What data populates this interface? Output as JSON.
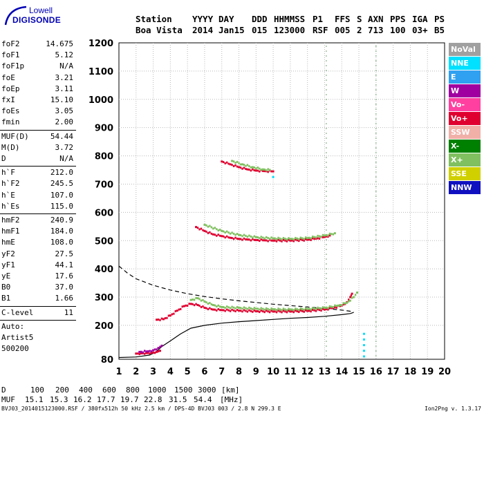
{
  "logo": {
    "line1": "Lowell",
    "line2": "DIGISONDE"
  },
  "header": {
    "labels": [
      "Station",
      "YYYY",
      "DAY",
      "DDD",
      "HHMMSS",
      "P1",
      "FFS",
      "S",
      "AXN",
      "PPS",
      "IGA",
      "PS"
    ],
    "values": [
      "Boa Vista",
      "2014",
      "Jan15",
      "015",
      "123000",
      "RSF",
      "005",
      "2",
      "713",
      "100",
      "03+",
      "B5"
    ]
  },
  "params": {
    "group1": [
      {
        "k": "foF2",
        "v": "14.675"
      },
      {
        "k": "foF1",
        "v": "5.12"
      },
      {
        "k": "foF1p",
        "v": "N/A"
      },
      {
        "k": "foE",
        "v": "3.21"
      },
      {
        "k": "foEp",
        "v": "3.11"
      },
      {
        "k": "fxI",
        "v": "15.10"
      },
      {
        "k": "foEs",
        "v": "3.05"
      },
      {
        "k": "fmin",
        "v": "2.00"
      }
    ],
    "group2": [
      {
        "k": "MUF(D)",
        "v": "54.44"
      },
      {
        "k": "M(D)",
        "v": "3.72"
      },
      {
        "k": "D",
        "v": "N/A"
      }
    ],
    "group3": [
      {
        "k": "h`F",
        "v": "212.0"
      },
      {
        "k": "h`F2",
        "v": "245.5"
      },
      {
        "k": "h`E",
        "v": "107.0"
      },
      {
        "k": "h`Es",
        "v": "115.0"
      }
    ],
    "group4": [
      {
        "k": "hmF2",
        "v": "240.9"
      },
      {
        "k": "hmF1",
        "v": "184.0"
      },
      {
        "k": "hmE",
        "v": "108.0"
      },
      {
        "k": "yF2",
        "v": "27.5"
      },
      {
        "k": "yF1",
        "v": "44.1"
      },
      {
        "k": "yE",
        "v": "17.6"
      },
      {
        "k": "B0",
        "v": "37.0"
      },
      {
        "k": "B1",
        "v": "1.66"
      }
    ],
    "group5": [
      {
        "k": "C-level",
        "v": "11"
      }
    ],
    "auto": [
      "Auto:",
      "Artist5",
      "500200"
    ]
  },
  "legend": [
    {
      "label": "NoVal",
      "color": "#a0a0a0"
    },
    {
      "label": "NNE",
      "color": "#00e0ff"
    },
    {
      "label": "E",
      "color": "#30a0f0"
    },
    {
      "label": "W",
      "color": "#a000a0"
    },
    {
      "label": "Vo-",
      "color": "#ff40a0"
    },
    {
      "label": "Vo+",
      "color": "#e00030"
    },
    {
      "label": "SSW",
      "color": "#f0b0a8"
    },
    {
      "label": "X-",
      "color": "#008000"
    },
    {
      "label": "X+",
      "color": "#80c060"
    },
    {
      "label": "SSE",
      "color": "#d0d000"
    },
    {
      "label": "NNW",
      "color": "#1010c0"
    }
  ],
  "chart_data": {
    "type": "scatter",
    "xlim": [
      1,
      20
    ],
    "ylim": [
      80,
      1200
    ],
    "x_ticks": [
      "1",
      "2",
      "3",
      "4",
      "5",
      "6",
      "7",
      "8",
      "9",
      "10",
      "11",
      "12",
      "13",
      "14",
      "15",
      "16",
      "17",
      "18",
      "19",
      "20"
    ],
    "y_ticks": [
      "80",
      "200",
      "300",
      "400",
      "500",
      "600",
      "700",
      "800",
      "900",
      "1000",
      "1100",
      "1200"
    ],
    "grid": true,
    "series": [
      {
        "name": "Vo+",
        "color": "#e00030",
        "points": [
          [
            3.2,
            220
          ],
          [
            3.6,
            222
          ],
          [
            4.0,
            235
          ],
          [
            4.4,
            252
          ],
          [
            4.8,
            268
          ],
          [
            5.2,
            276
          ],
          [
            5.6,
            272
          ],
          [
            6.0,
            262
          ],
          [
            6.5,
            256
          ],
          [
            7.0,
            254
          ],
          [
            8,
            252
          ],
          [
            9,
            250
          ],
          [
            10,
            249
          ],
          [
            11,
            249
          ],
          [
            12,
            251
          ],
          [
            13,
            256
          ],
          [
            13.5,
            262
          ],
          [
            14,
            270
          ],
          [
            14.3,
            282
          ],
          [
            14.5,
            300
          ],
          [
            14.6,
            312
          ]
        ]
      },
      {
        "name": "X+",
        "color": "#80c060",
        "points": [
          [
            5.2,
            290
          ],
          [
            5.6,
            296
          ],
          [
            6.0,
            284
          ],
          [
            6.5,
            272
          ],
          [
            7,
            265
          ],
          [
            8,
            262
          ],
          [
            9,
            259
          ],
          [
            10,
            257
          ],
          [
            11,
            256
          ],
          [
            12,
            258
          ],
          [
            13,
            262
          ],
          [
            13.8,
            270
          ],
          [
            14.3,
            280
          ],
          [
            14.7,
            300
          ],
          [
            14.9,
            316
          ]
        ]
      },
      {
        "name": "Vo+ 2hop",
        "color": "#e00030",
        "points": [
          [
            5.5,
            548
          ],
          [
            6,
            534
          ],
          [
            6.5,
            522
          ],
          [
            7,
            516
          ],
          [
            7.5,
            510
          ],
          [
            8,
            506
          ],
          [
            8.5,
            504
          ],
          [
            9,
            502
          ],
          [
            9.5,
            501
          ],
          [
            10,
            500
          ],
          [
            11,
            500
          ],
          [
            12,
            503
          ],
          [
            12.5,
            507
          ],
          [
            13,
            513
          ],
          [
            13.3,
            518
          ]
        ]
      },
      {
        "name": "X+ 2hop",
        "color": "#80c060",
        "points": [
          [
            6,
            556
          ],
          [
            7,
            534
          ],
          [
            8,
            520
          ],
          [
            9,
            512
          ],
          [
            10,
            508
          ],
          [
            11,
            506
          ],
          [
            12,
            509
          ],
          [
            13,
            518
          ],
          [
            13.6,
            526
          ]
        ]
      },
      {
        "name": "Vo+ 3hop",
        "color": "#e00030",
        "points": [
          [
            7,
            780
          ],
          [
            7.5,
            770
          ],
          [
            8,
            760
          ],
          [
            8.5,
            752
          ],
          [
            9,
            748
          ],
          [
            9.5,
            746
          ],
          [
            10,
            745
          ]
        ]
      },
      {
        "name": "X+ 3hop",
        "color": "#80c060",
        "points": [
          [
            7.6,
            782
          ],
          [
            8.2,
            770
          ],
          [
            8.8,
            760
          ],
          [
            9.4,
            752
          ],
          [
            9.8,
            750
          ]
        ]
      },
      {
        "name": "Es",
        "color": "#e00030",
        "points": [
          [
            2.0,
            100
          ],
          [
            2.3,
            101
          ],
          [
            2.6,
            102
          ],
          [
            2.9,
            103
          ],
          [
            3.2,
            106
          ],
          [
            3.4,
            110
          ]
        ]
      },
      {
        "name": "Es-W",
        "color": "#a000a0",
        "points": [
          [
            2.2,
            106
          ],
          [
            2.7,
            108
          ],
          [
            3.0,
            112
          ],
          [
            3.3,
            120
          ],
          [
            3.5,
            128
          ]
        ]
      },
      {
        "name": "NNE",
        "color": "#00e0ff",
        "points": [
          [
            15.3,
            90
          ],
          [
            15.3,
            110
          ],
          [
            15.3,
            130
          ],
          [
            15.3,
            150
          ],
          [
            15.3,
            170
          ],
          [
            10,
            725
          ]
        ]
      }
    ],
    "profile_solid": [
      [
        1,
        86
      ],
      [
        2,
        88
      ],
      [
        2.8,
        95
      ],
      [
        3.2,
        108
      ],
      [
        3.5,
        125
      ],
      [
        4,
        145
      ],
      [
        4.6,
        170
      ],
      [
        5.2,
        190
      ],
      [
        6,
        200
      ],
      [
        7,
        208
      ],
      [
        8,
        213
      ],
      [
        9,
        217
      ],
      [
        10,
        221
      ],
      [
        11,
        225
      ],
      [
        12,
        228
      ],
      [
        13,
        232
      ],
      [
        14,
        238
      ],
      [
        14.5,
        242
      ],
      [
        14.7,
        246
      ]
    ],
    "profile_dashed": [
      [
        1,
        410
      ],
      [
        1.5,
        385
      ],
      [
        2,
        365
      ],
      [
        3,
        342
      ],
      [
        4,
        325
      ],
      [
        5,
        312
      ],
      [
        6,
        302
      ],
      [
        7,
        294
      ],
      [
        8,
        287
      ],
      [
        9,
        281
      ],
      [
        10,
        275
      ],
      [
        11,
        270
      ],
      [
        12,
        265
      ],
      [
        13,
        260
      ],
      [
        14,
        254
      ],
      [
        14.5,
        250
      ],
      [
        14.7,
        246
      ]
    ],
    "noise_vertical_x": [
      13.1,
      16.0
    ]
  },
  "footer": {
    "d_label": "D",
    "d_values": [
      "100",
      "200",
      "400",
      "600",
      "800",
      "1000",
      "1500",
      "3000",
      "[km]"
    ],
    "muf_label": "MUF",
    "muf_values": [
      "15.1",
      "15.3",
      "16.2",
      "17.7",
      "19.7",
      "22.8",
      "31.5",
      "54.4",
      "[MHz]"
    ],
    "file_info": "BVJ03_2014015123000.RSF / 380fx512h 50 kHz 2.5 km / DPS-4D BVJ03 003 / 2.8 N 299.3 E",
    "version": "Ion2Png v. 1.3.17"
  }
}
